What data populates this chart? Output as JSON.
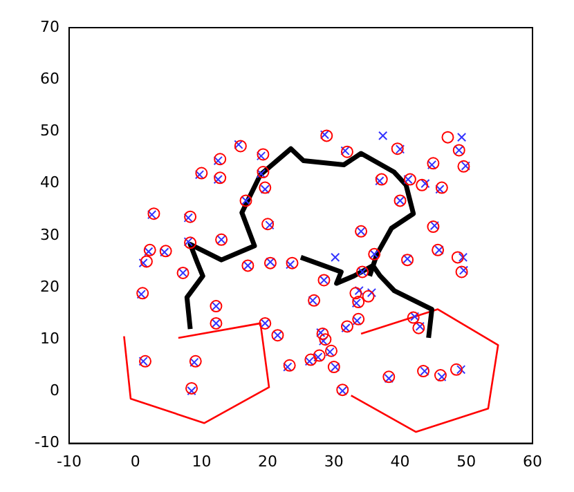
{
  "chart_data": {
    "type": "scatter",
    "xlim": [
      -10,
      60
    ],
    "xticks": [
      -10,
      0,
      10,
      20,
      30,
      40,
      50,
      60
    ],
    "ylim": [
      -10,
      70
    ],
    "yticks": [
      -10,
      0,
      10,
      20,
      30,
      40,
      50,
      60,
      70
    ],
    "grid": false,
    "legend": false,
    "series": [
      {
        "type": "line",
        "color": "#ff0000",
        "line_style": "solid",
        "marker": "none",
        "x": [
          -1.7,
          -0.7,
          10.4,
          20.2,
          18.9,
          6.5
        ],
        "values": [
          10.6,
          -1.4,
          -6.1,
          0.8,
          13.1,
          10.3
        ]
      },
      {
        "type": "line",
        "color": "#ff0000",
        "line_style": "solid",
        "marker": "none",
        "x": [
          32.6,
          42.4,
          53.3,
          54.8,
          45.7,
          34.1
        ],
        "values": [
          -0.8,
          -7.8,
          -3.3,
          8.9,
          15.8,
          11.1
        ]
      },
      {
        "type": "scatter",
        "marker": "circle",
        "color": "#ff0000",
        "x": [
          15.9,
          12.8,
          10,
          12.8,
          19.3,
          19.3,
          19.6,
          2.8,
          8.3,
          16.7,
          20,
          13,
          8.3,
          2.2,
          4.6,
          1.7,
          7.2,
          17,
          20.4,
          23.7,
          28.9,
          32,
          39.6,
          47.2,
          48.9,
          45,
          49.6,
          41.5,
          43.3,
          46.3,
          37.2,
          40,
          34.1,
          45,
          45.7,
          48.7,
          49.3,
          41.1,
          36.1,
          34.3,
          1.1,
          12.2,
          12.2,
          19.6,
          21.5,
          23.3,
          1.5,
          9.1,
          8.5,
          28.5,
          27,
          33.3,
          35.2,
          33.7,
          33.7,
          32,
          28.3,
          28.7,
          29.6,
          27.8,
          26.5,
          30,
          31.3,
          38.3,
          43.5,
          46.1,
          48.5,
          42,
          42.8
        ],
        "values": [
          47.2,
          44.7,
          42,
          41.1,
          45.6,
          42.2,
          39.2,
          34.2,
          33.6,
          36.7,
          32.2,
          29.2,
          28.6,
          27.2,
          27,
          25,
          22.8,
          24.2,
          24.7,
          24.7,
          49.2,
          46.1,
          46.7,
          48.9,
          46.4,
          43.9,
          43.3,
          40.8,
          39.7,
          39.2,
          40.8,
          36.7,
          30.8,
          31.7,
          27.2,
          25.8,
          23,
          25.3,
          26.4,
          23,
          18.9,
          16.4,
          13.1,
          13.1,
          10.8,
          5,
          5.8,
          5.8,
          0.6,
          21.4,
          17.5,
          18.9,
          18.3,
          17.2,
          13.9,
          12.5,
          11.1,
          10,
          7.8,
          6.9,
          6.1,
          4.7,
          0.3,
          2.8,
          3.9,
          3.1,
          4.2,
          14.2,
          12.2
        ]
      },
      {
        "type": "scatter",
        "marker": "cross",
        "color": "#3333ff",
        "x": [
          15.6,
          12.5,
          9.7,
          12.5,
          19,
          19,
          19.6,
          2.5,
          8,
          16.7,
          20.3,
          13,
          8,
          2,
          4.4,
          1.2,
          7.2,
          17,
          20.4,
          23.4,
          28.6,
          31.7,
          40,
          49.3,
          48.9,
          44.8,
          49.9,
          41.2,
          43.8,
          46,
          36.9,
          40,
          34.1,
          45.2,
          45.9,
          49.5,
          49.6,
          41.1,
          36.1,
          34.3,
          0.9,
          12.2,
          12.2,
          19.6,
          21.5,
          23,
          1.2,
          8.9,
          8.5,
          28.5,
          26.8,
          33.8,
          35.7,
          33.4,
          33.5,
          31.8,
          28,
          28.4,
          29.4,
          27.6,
          26.3,
          30.2,
          31.3,
          38.3,
          43.7,
          46.3,
          49.2,
          42.2,
          43,
          37.4,
          30.2
        ],
        "values": [
          47.5,
          44.4,
          41.7,
          40.8,
          45.3,
          41.9,
          38.9,
          34,
          33.4,
          36.7,
          32,
          29.2,
          28.8,
          26.9,
          26.8,
          24.7,
          22.8,
          24.2,
          24.9,
          24.4,
          49.4,
          46.3,
          46.6,
          48.9,
          46.4,
          43.6,
          43.4,
          40.8,
          40,
          38.9,
          40.5,
          36.7,
          30.8,
          31.9,
          27.2,
          25.8,
          23.3,
          25.5,
          26.4,
          23,
          18.7,
          16.4,
          13.1,
          13.1,
          10.8,
          4.7,
          5.8,
          5.6,
          0.1,
          21.4,
          17.5,
          19.4,
          19,
          17,
          13.6,
          12.2,
          11.3,
          9.7,
          7.6,
          6.6,
          5.8,
          4.7,
          0.1,
          2.5,
          3.9,
          2.8,
          4.2,
          14.4,
          12.5,
          49.2,
          25.8
        ]
      },
      {
        "type": "line",
        "color": "#000000",
        "line_style": "solid",
        "marker": "none",
        "x": [
          8.3,
          7.8,
          10.2,
          9.3,
          8.3,
          13,
          18,
          16.1,
          18.9,
          23.5,
          25.4,
          31.5,
          34.1,
          39.1,
          40.9,
          42,
          38.7,
          36.5,
          35.4
        ],
        "values": [
          12,
          18.1,
          22.2,
          25,
          28.3,
          25.3,
          28,
          34.4,
          41.7,
          46.7,
          44.4,
          43.6,
          45.8,
          42.2,
          39.7,
          34.2,
          31.4,
          26.4,
          22.2
        ]
      },
      {
        "type": "line",
        "color": "#000000",
        "line_style": "solid",
        "marker": "none",
        "x": [
          25,
          31.1,
          30.4,
          33,
          35.9,
          37,
          39.1,
          44.8,
          44.3
        ],
        "values": [
          25.8,
          23,
          20.8,
          22.2,
          24.2,
          22.2,
          19.4,
          15.8,
          10.3
        ]
      }
    ]
  }
}
